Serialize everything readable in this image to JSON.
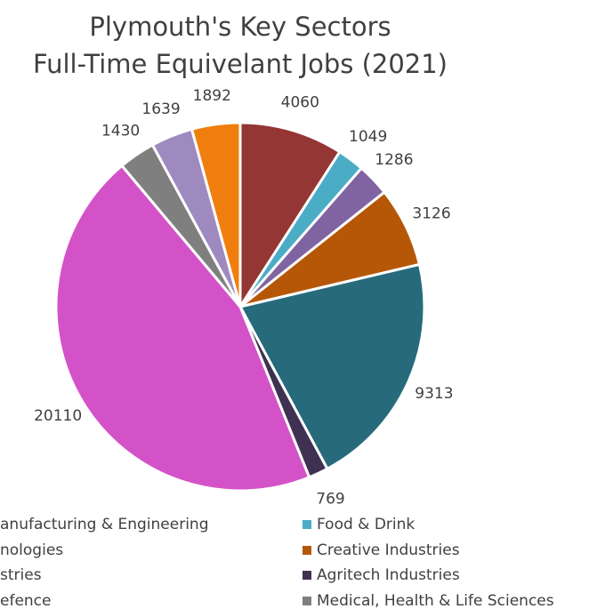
{
  "chart_data": {
    "type": "pie",
    "title": [
      "Plymouth's Key Sectors",
      "Full-Time Equivelant Jobs (2021)"
    ],
    "categories": [
      "anufacturing & Engineering",
      "Food & Drink",
      "nologies",
      "Creative Industries",
      "stries",
      "Agritech Industries",
      "efence",
      "Medical, Health & Life Sciences",
      null,
      null
    ],
    "values": [
      4060,
      1049,
      1286,
      3126,
      9313,
      769,
      20110,
      1430,
      1639,
      1892
    ],
    "colors": [
      "#943634",
      "#4bacc6",
      "#8064a2",
      "#b65708",
      "#276a7c",
      "#3f3151",
      "#d452c8",
      "#7f7f7f",
      "#9f8ac0",
      "#f07e0e"
    ]
  }
}
